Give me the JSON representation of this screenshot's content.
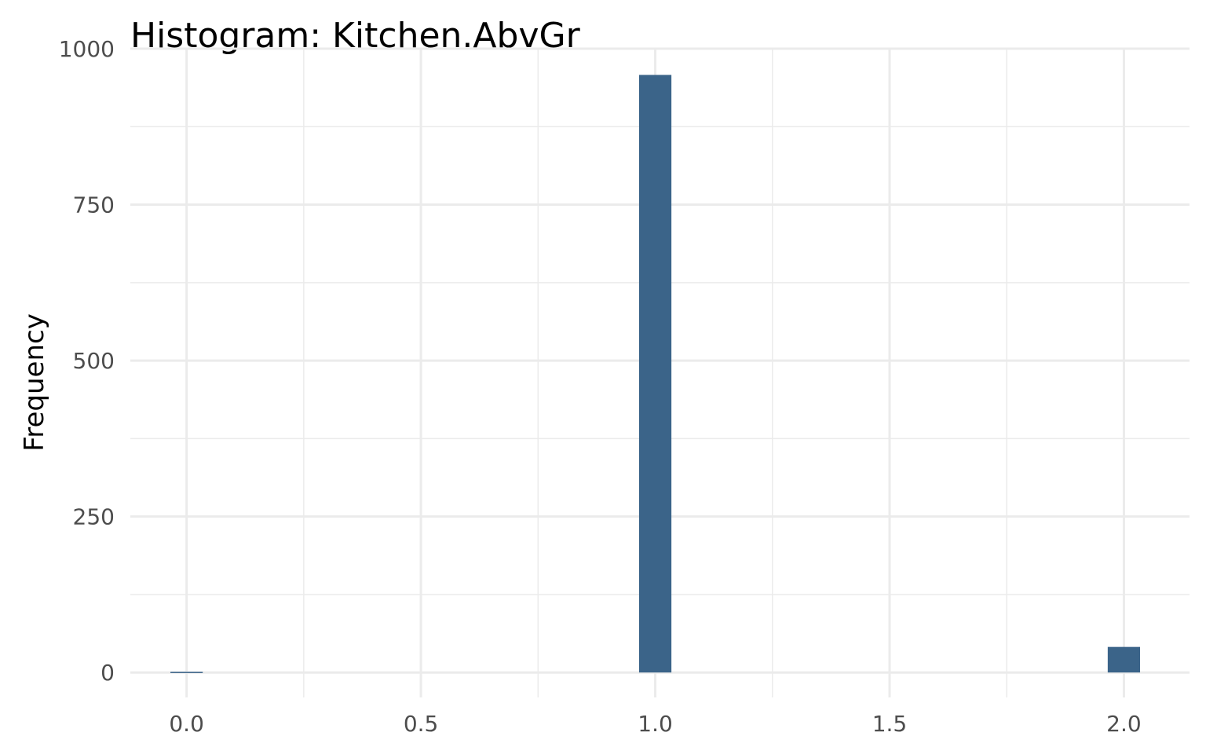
{
  "chart_data": {
    "type": "bar",
    "title": "Histogram:  Kitchen.AbvGr",
    "xlabel": "",
    "ylabel": "Frequency",
    "xlim": [
      -0.12,
      2.14
    ],
    "ylim": [
      -40,
      1000
    ],
    "x_ticks": [
      0.0,
      0.5,
      1.0,
      1.5,
      2.0
    ],
    "x_tick_labels": [
      "0.0",
      "0.5",
      "1.0",
      "1.5",
      "2.0"
    ],
    "y_ticks": [
      0,
      250,
      500,
      750,
      1000
    ],
    "y_tick_labels": [
      "0",
      "250",
      "500",
      "750",
      "1000"
    ],
    "bin_width": 0.069,
    "bins": [
      {
        "x": 0.0,
        "count": 1
      },
      {
        "x": 1.0,
        "count": 958
      },
      {
        "x": 2.0,
        "count": 41
      }
    ],
    "bar_color": "#3b6489",
    "grid": true
  }
}
